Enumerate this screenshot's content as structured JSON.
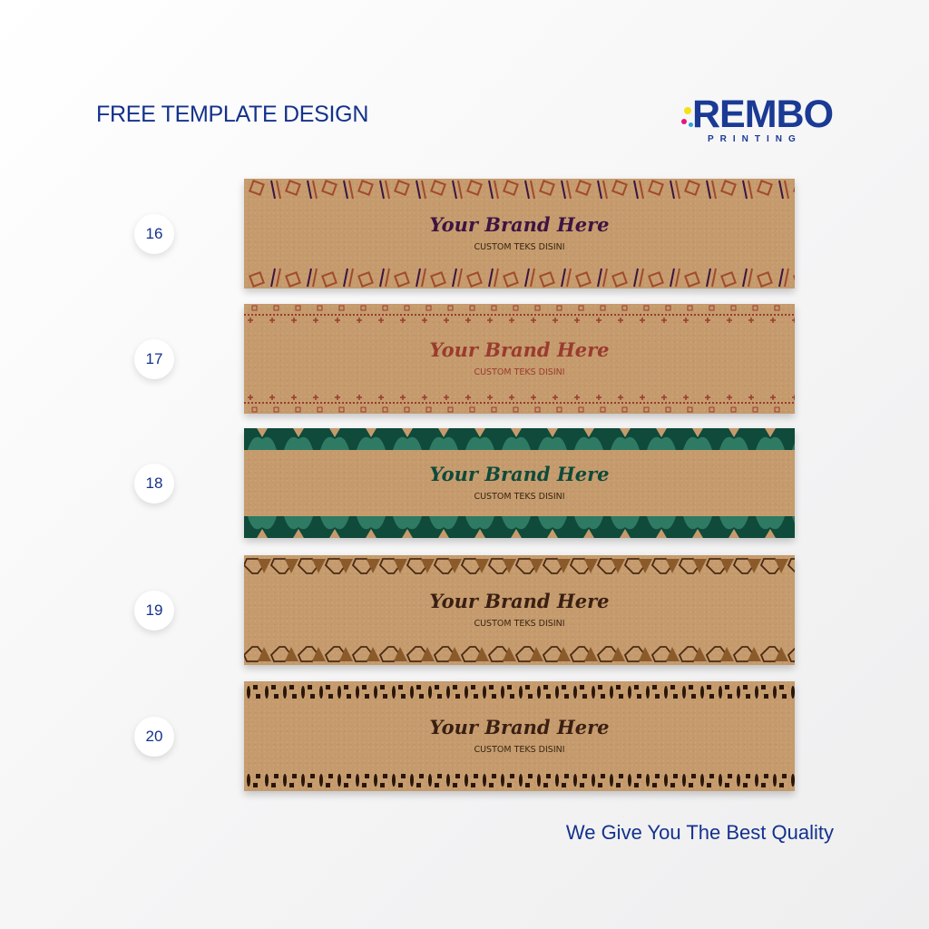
{
  "header": {
    "title": "FREE TEMPLATE DESIGN"
  },
  "logo": {
    "text": "REMBO",
    "subtext": "PRINTING",
    "dot_colors": [
      "#f5e01a",
      "#e0197d",
      "#2aa3e0"
    ]
  },
  "templates": [
    {
      "number": "16",
      "brand": "Your Brand Here",
      "custom": "CUSTOM TEKS DISINI",
      "brand_color": "#3d1442",
      "pattern_colors": [
        "#3d1442",
        "#a14a2d"
      ]
    },
    {
      "number": "17",
      "brand": "Your Brand Here",
      "custom": "CUSTOM TEKS DISINI",
      "brand_color": "#9a3b2e",
      "pattern_colors": [
        "#9a3b2e",
        "#9a3b2e"
      ]
    },
    {
      "number": "18",
      "brand": "Your Brand Here",
      "custom": "CUSTOM TEKS DISINI",
      "brand_color": "#0f4a3a",
      "pattern_colors": [
        "#0f4a3a",
        "#2f7a63"
      ]
    },
    {
      "number": "19",
      "brand": "Your Brand Here",
      "custom": "CUSTOM TEKS DISINI",
      "brand_color": "#3a1f12",
      "pattern_colors": [
        "#4a2a14",
        "#8a5a2a"
      ]
    },
    {
      "number": "20",
      "brand": "Your Brand Here",
      "custom": "CUSTOM TEKS DISINI",
      "brand_color": "#3a1f12",
      "pattern_colors": [
        "#2a1608",
        "#2a1608"
      ]
    }
  ],
  "footer": {
    "tagline": "We Give You The Best Quality"
  }
}
